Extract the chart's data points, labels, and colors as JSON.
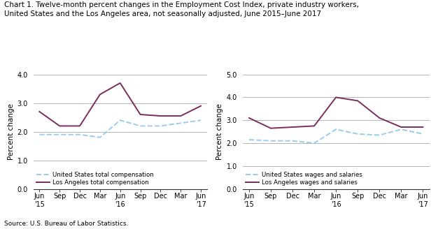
{
  "title_line1": "Chart 1. Twelve-month percent changes in the Employment Cost Index, private industry workers,",
  "title_line2": "United States and the Los Angeles area, not seasonally adjusted, June 2015–June 2017",
  "title_fontsize": 7.5,
  "source": "Source: U.S. Bureau of Labor Statistics.",
  "x_label_short": [
    "Jun",
    "Sep",
    "Dec",
    "Mar",
    "Jun",
    "Sep",
    "Dec",
    "Mar",
    "Jun"
  ],
  "x_year": [
    "'15",
    "",
    "",
    "",
    "'16",
    "",
    "",
    "",
    "'17"
  ],
  "left_ylabel": "Percent change",
  "right_ylabel": "Percent change",
  "left_ylim": [
    0.0,
    4.0
  ],
  "right_ylim": [
    0.0,
    5.0
  ],
  "left_yticks": [
    0.0,
    1.0,
    2.0,
    3.0,
    4.0
  ],
  "right_yticks": [
    0.0,
    1.0,
    2.0,
    3.0,
    4.0,
    5.0
  ],
  "left_us_total_comp": [
    1.9,
    1.9,
    1.9,
    1.8,
    2.4,
    2.2,
    2.2,
    2.3,
    2.4
  ],
  "left_la_total_comp": [
    2.7,
    2.2,
    2.2,
    3.3,
    3.7,
    2.6,
    2.55,
    2.55,
    2.9
  ],
  "right_us_wages_sal": [
    2.15,
    2.1,
    2.1,
    2.0,
    2.6,
    2.4,
    2.35,
    2.6,
    2.4
  ],
  "right_la_wages_sal": [
    3.1,
    2.65,
    2.7,
    2.75,
    4.0,
    3.85,
    3.1,
    2.7,
    2.7
  ],
  "us_color": "#99CCEE",
  "la_color": "#7B2D5E",
  "grid_color": "#aaaaaa",
  "background_color": "#ffffff",
  "left_legend_us": "United States total compensation",
  "left_legend_la": "Los Angeles total compensation",
  "right_legend_us": "United States wages and salaries",
  "right_legend_la": "Los Angeles wages and salaries"
}
